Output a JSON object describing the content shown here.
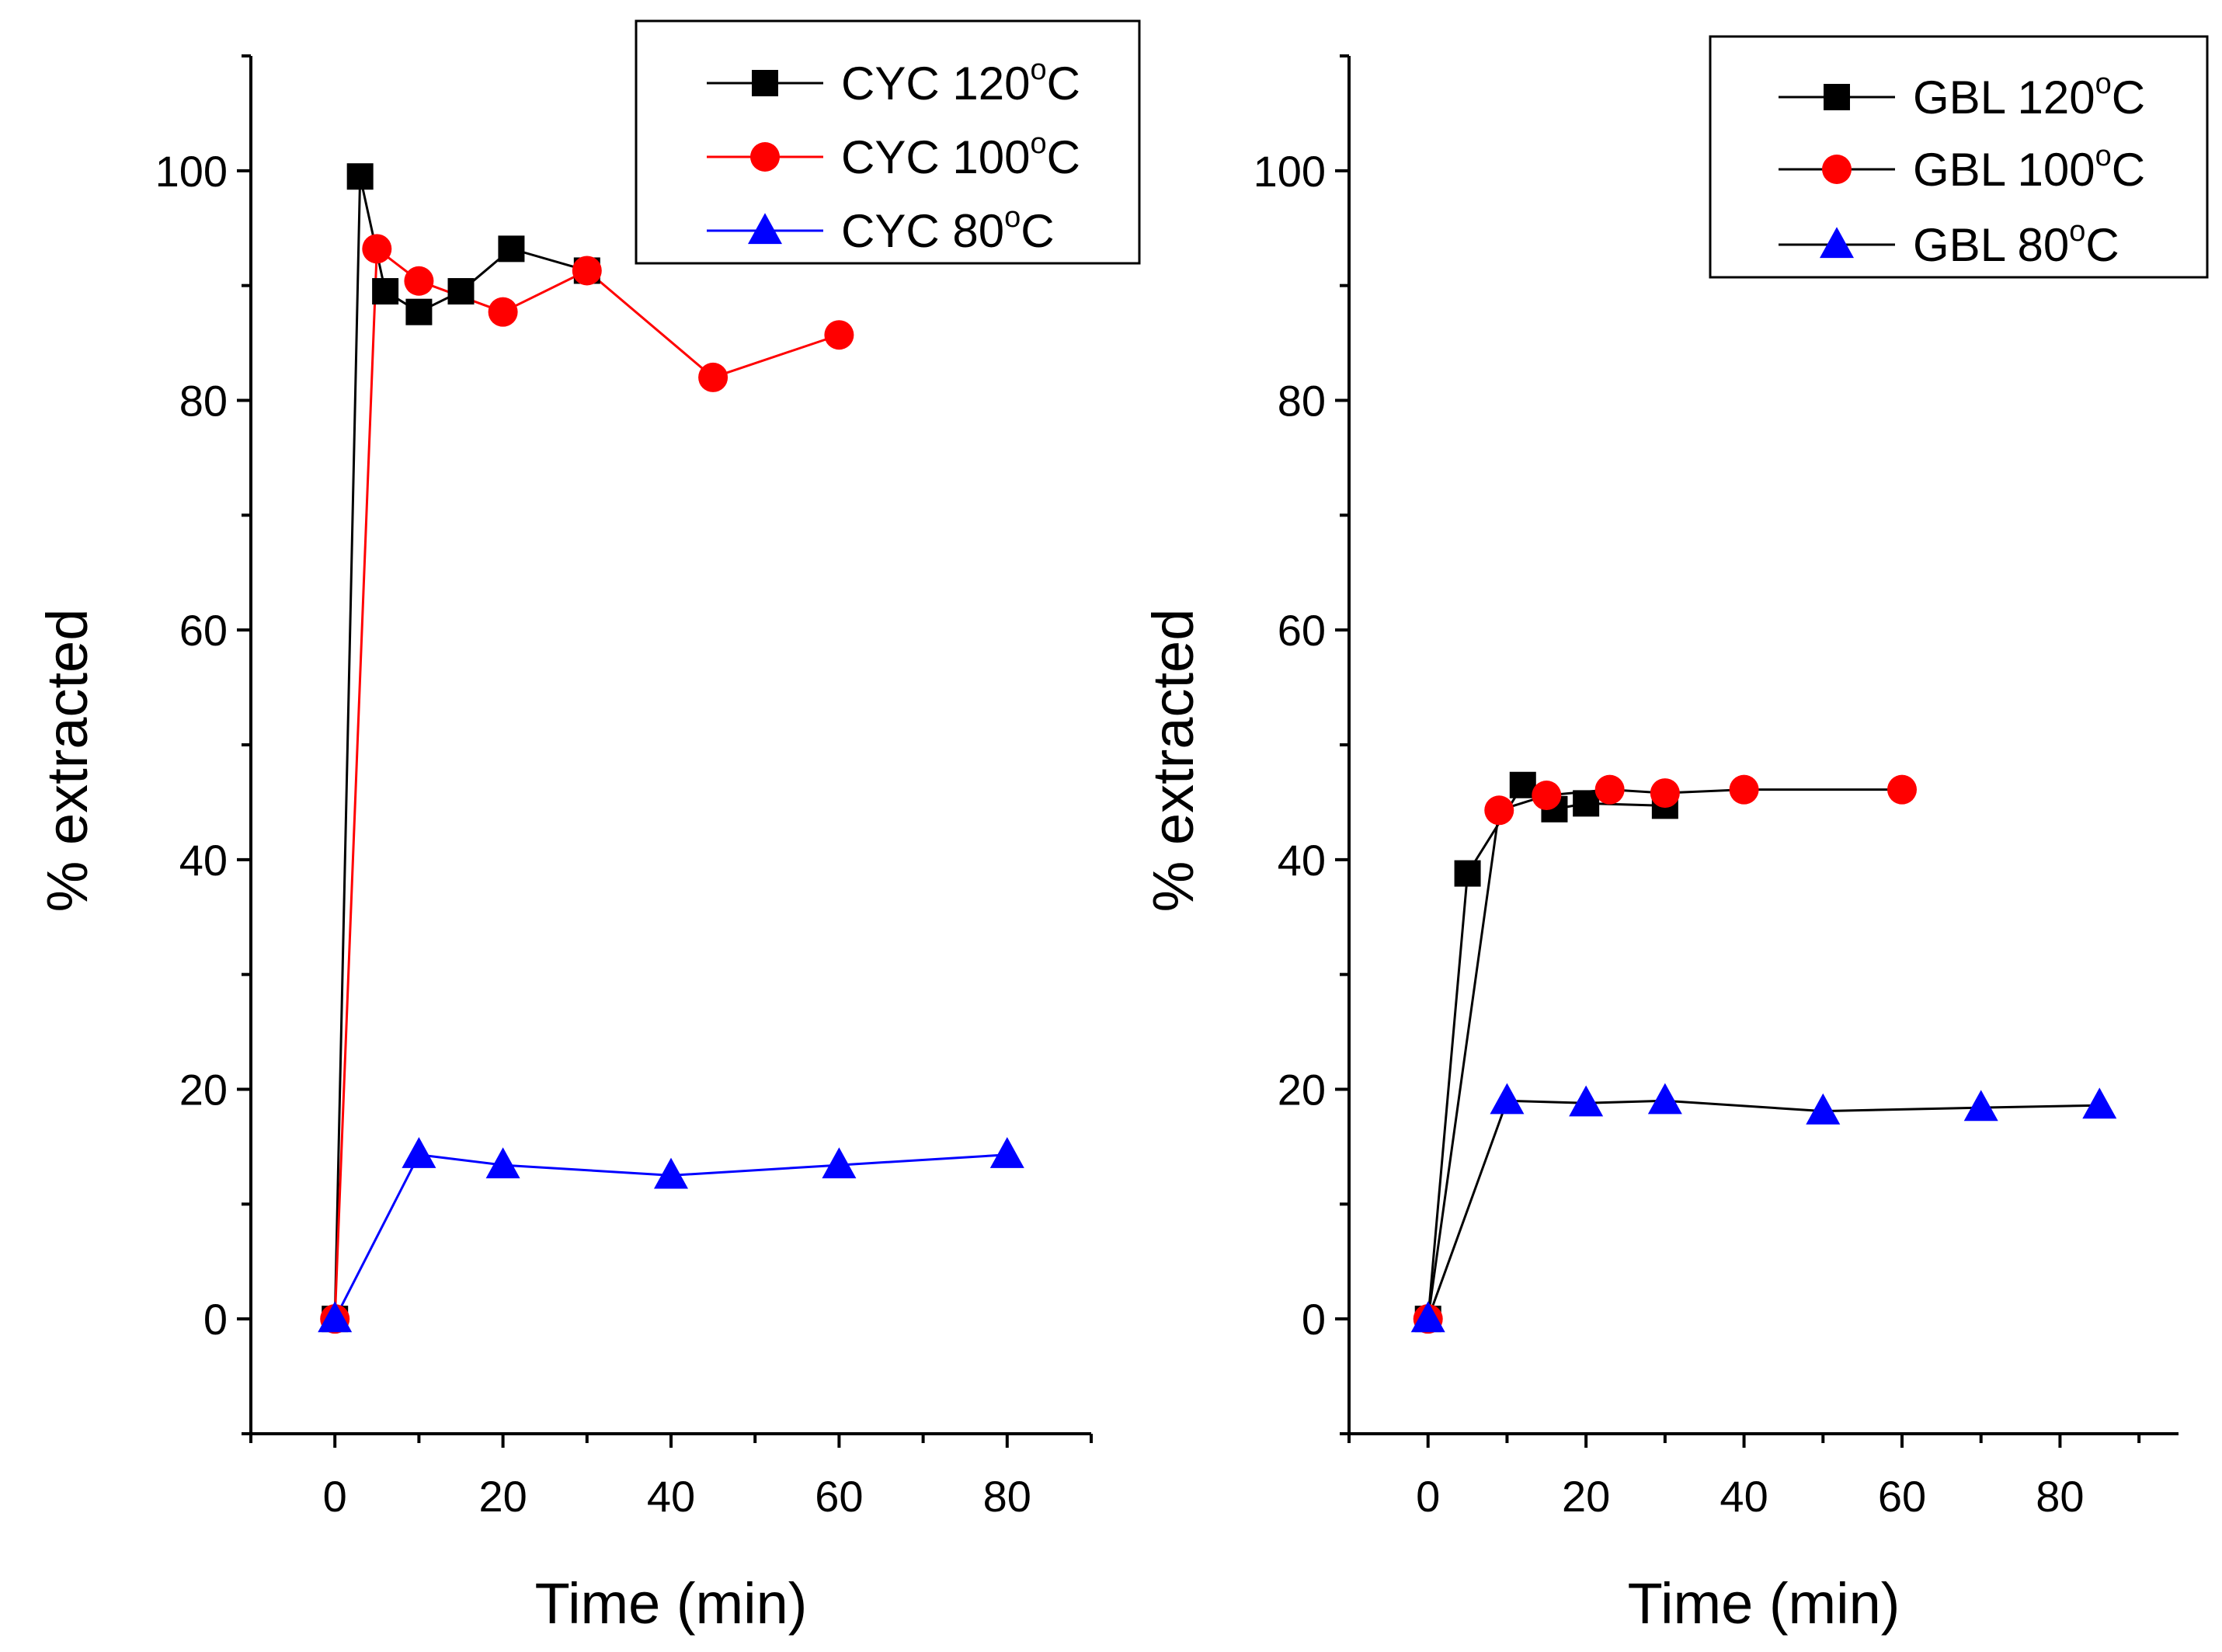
{
  "chart_data": [
    {
      "type": "line",
      "xlabel": "Time (min)",
      "ylabel": "% extracted",
      "xlim": [
        -10,
        90
      ],
      "ylim": [
        -10,
        110
      ],
      "xticks": [
        "0",
        "20",
        "40",
        "60",
        "80"
      ],
      "yticks": [
        "0",
        "20",
        "40",
        "60",
        "80",
        "100"
      ],
      "legend_position": "top-right",
      "series": [
        {
          "name": "CYC 120°C",
          "label_main": "CYC 120",
          "label_sup": "o",
          "label_end": "C",
          "marker": "square",
          "color": "#000000",
          "line_color": "#000000",
          "x": [
            0,
            3,
            6,
            10,
            15,
            21,
            30
          ],
          "y": [
            0,
            99.5,
            89.5,
            87.7,
            89.5,
            93.2,
            91.3
          ]
        },
        {
          "name": "CYC 100°C",
          "label_main": "CYC 100",
          "label_sup": "o",
          "label_end": "C",
          "marker": "circle",
          "color": "#ff0000",
          "line_color": "#ff0000",
          "x": [
            0,
            5,
            10,
            20,
            30,
            45,
            60
          ],
          "y": [
            0,
            93.2,
            90.4,
            87.7,
            91.3,
            82.0,
            85.7
          ]
        },
        {
          "name": "CYC 80°C",
          "label_main": "CYC 80",
          "label_sup": "o",
          "label_end": "C",
          "marker": "triangle",
          "color": "#0000ff",
          "line_color": "#0000ff",
          "x": [
            0,
            10,
            20,
            40,
            60,
            80
          ],
          "y": [
            0,
            14.3,
            13.4,
            12.5,
            13.4,
            14.3
          ]
        }
      ]
    },
    {
      "type": "line",
      "xlabel": "Time (min)",
      "ylabel": "% extracted",
      "xlim": [
        -10,
        95
      ],
      "ylim": [
        -10,
        110
      ],
      "xticks": [
        "0",
        "20",
        "40",
        "60",
        "80"
      ],
      "yticks": [
        "0",
        "20",
        "40",
        "60",
        "80",
        "100"
      ],
      "legend_position": "top-right",
      "series": [
        {
          "name": "GBL 120°C",
          "label_main": "GBL 120",
          "label_sup": "o",
          "label_end": "C",
          "marker": "square",
          "color": "#000000",
          "line_color": "#000000",
          "x": [
            0,
            5,
            12,
            16,
            20,
            30
          ],
          "y": [
            0,
            38.8,
            46.5,
            44.4,
            44.9,
            44.7
          ]
        },
        {
          "name": "GBL 100°C",
          "label_main": "GBL 100",
          "label_sup": "o",
          "label_end": "C",
          "marker": "circle",
          "color": "#ff0000",
          "line_color": "#000000",
          "x": [
            0,
            9,
            15,
            23,
            30,
            40,
            60
          ],
          "y": [
            0,
            44.3,
            45.6,
            46.1,
            45.8,
            46.1,
            46.1
          ]
        },
        {
          "name": "GBL 80°C",
          "label_main": "GBL 80",
          "label_sup": "o",
          "label_end": "C",
          "marker": "triangle",
          "color": "#0000ff",
          "line_color": "#000000",
          "x": [
            0,
            10,
            20,
            30,
            50,
            70,
            85
          ],
          "y": [
            0,
            19.0,
            18.8,
            19.0,
            18.1,
            18.4,
            18.6
          ]
        }
      ]
    }
  ]
}
